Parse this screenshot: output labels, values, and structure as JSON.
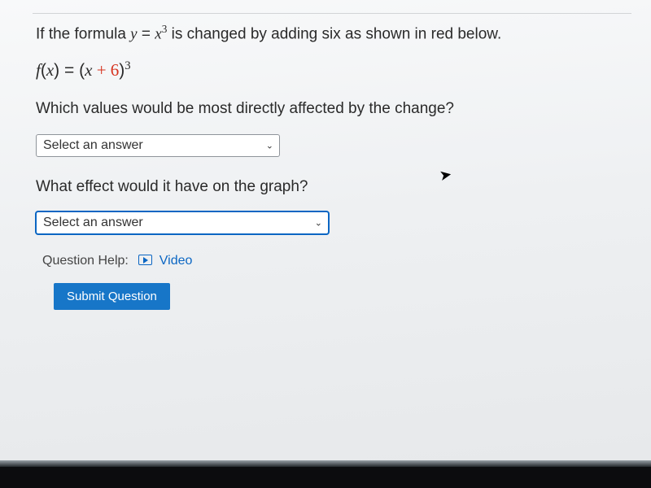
{
  "question": {
    "intro_prefix": "If the formula ",
    "formula_original": {
      "y": "y",
      "eq": " = ",
      "x": "x",
      "exp": "3"
    },
    "intro_suffix": " is changed by adding six as shown in red below.",
    "formula_changed": {
      "f": "f",
      "open": "(",
      "x1": "x",
      "close": ")",
      "eq": " = ",
      "open2": "(",
      "x2": "x",
      "plus6": " + 6",
      "close2": ")",
      "exp": "3"
    },
    "prompt1": "Which values would be most directly affected by the change?",
    "prompt2": "What effect would it have on the graph?"
  },
  "selects": {
    "placeholder": "Select an answer"
  },
  "help": {
    "label": "Question Help:",
    "video": "Video"
  },
  "buttons": {
    "submit": "Submit Question"
  },
  "colors": {
    "accent_red": "#d6321e",
    "link_blue": "#0b66c3",
    "button_blue": "#1776c8"
  }
}
